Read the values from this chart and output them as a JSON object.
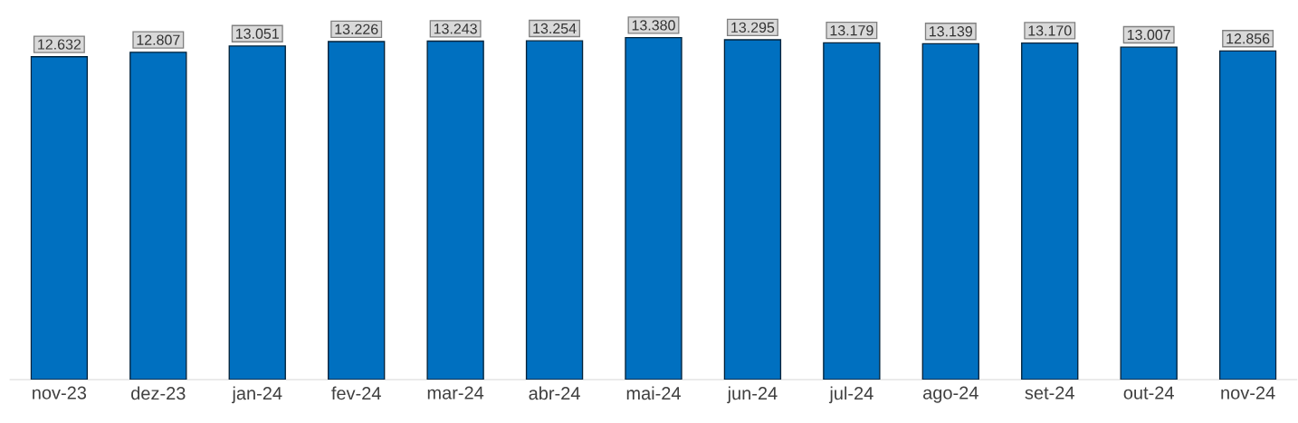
{
  "chart_data": {
    "type": "bar",
    "categories": [
      "nov-23",
      "dez-23",
      "jan-24",
      "fev-24",
      "mar-24",
      "abr-24",
      "mai-24",
      "jun-24",
      "jul-24",
      "ago-24",
      "set-24",
      "out-24",
      "nov-24"
    ],
    "values": [
      12.632,
      12.807,
      13.051,
      13.226,
      13.243,
      13.254,
      13.38,
      13.295,
      13.179,
      13.139,
      13.17,
      13.007,
      12.856
    ],
    "value_labels": [
      "12.632",
      "12.807",
      "13.051",
      "13.226",
      "13.243",
      "13.254",
      "13.380",
      "13.295",
      "13.179",
      "13.139",
      "13.170",
      "13.007",
      "12.856"
    ],
    "color": "#0070c0"
  }
}
